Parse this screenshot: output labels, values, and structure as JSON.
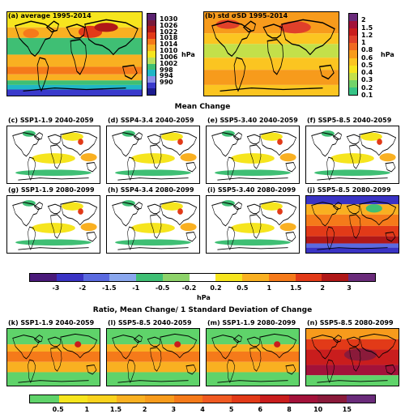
{
  "top_panels": [
    {
      "title": "(a) average 1995-2014"
    },
    {
      "title": "(b) std σSD 1995-2014"
    }
  ],
  "cbar_a": {
    "labels": [
      "1030",
      "1026",
      "1022",
      "1018",
      "1014",
      "1010",
      "1006",
      "1002",
      "998",
      "994",
      "990"
    ],
    "unit": "hPa",
    "colors": [
      "#5a2270",
      "#7a1a3a",
      "#b01818",
      "#e23a18",
      "#f57a1a",
      "#f9b021",
      "#f6e51e",
      "#b8e05a",
      "#3fbf74",
      "#1fb6c6",
      "#8a8ee8",
      "#3a3acb",
      "#1c1c90"
    ]
  },
  "cbar_b": {
    "labels": [
      "2",
      "1.5",
      "1.2",
      "1",
      "0.8",
      "0.6",
      "0.5",
      "0.4",
      "0.3",
      "0.2",
      "0.1"
    ],
    "unit": "hPa",
    "colors": [
      "#6a2b7a",
      "#a3123a",
      "#c91d1d",
      "#e0402a",
      "#f06a22",
      "#f79b1c",
      "#fbc521",
      "#f6e51e",
      "#c3e04a",
      "#72d36a",
      "#36c486"
    ]
  },
  "mean_change_title": "Mean Change",
  "mean_panels": [
    {
      "title": "(c) SSP1-1.9  2040-2059"
    },
    {
      "title": "(d) SSP4-3.4  2040-2059"
    },
    {
      "title": "(e) SSP5-3.40  2040-2059"
    },
    {
      "title": "(f) SSP5-8.5  2040-2059"
    },
    {
      "title": "(g) SSP1-1.9  2080-2099"
    },
    {
      "title": "(h) SSP4-3.4  2080-2099"
    },
    {
      "title": "(i) SSP5-3.40  2080-2099"
    },
    {
      "title": "(j) SSP5-8.5  2080-2099"
    }
  ],
  "cbar_mean": {
    "labels": [
      "-3",
      "-2",
      "-1.5",
      "-1",
      "-0.5",
      "-0.2",
      "0.2",
      "0.5",
      "1",
      "1.5",
      "2",
      "3"
    ],
    "unit": "hPa",
    "colors": [
      "#4a1a7a",
      "#3a33c4",
      "#5a6ae0",
      "#8aa7ee",
      "#3fbf74",
      "#8ed36a",
      "#ffffff",
      "#f6e51e",
      "#f9b021",
      "#f57a1a",
      "#e23a18",
      "#b01818",
      "#6a2b7a"
    ]
  },
  "ratio_title": "Ratio, Mean Change/ 1 Standard Deviation of Change",
  "ratio_panels": [
    {
      "title": "(k) SSP1-1.9  2040-2059"
    },
    {
      "title": "(l) SSP5-8.5  2040-2059"
    },
    {
      "title": "(m) SSP1-1.9  2080-2099"
    },
    {
      "title": "(n) SSP5-8.5  2080-2099"
    }
  ],
  "cbar_ratio": {
    "labels": [
      "0.5",
      "1",
      "1.5",
      "2",
      "3",
      "4",
      "5",
      "6",
      "8",
      "10",
      "15"
    ],
    "colors": [
      "#5fd36a",
      "#f6e51e",
      "#f9d21e",
      "#f9b021",
      "#f79b1c",
      "#f57a1a",
      "#f05a22",
      "#e23a18",
      "#c91d1d",
      "#a3123a",
      "#8a1a3a",
      "#6a2b7a"
    ]
  }
}
